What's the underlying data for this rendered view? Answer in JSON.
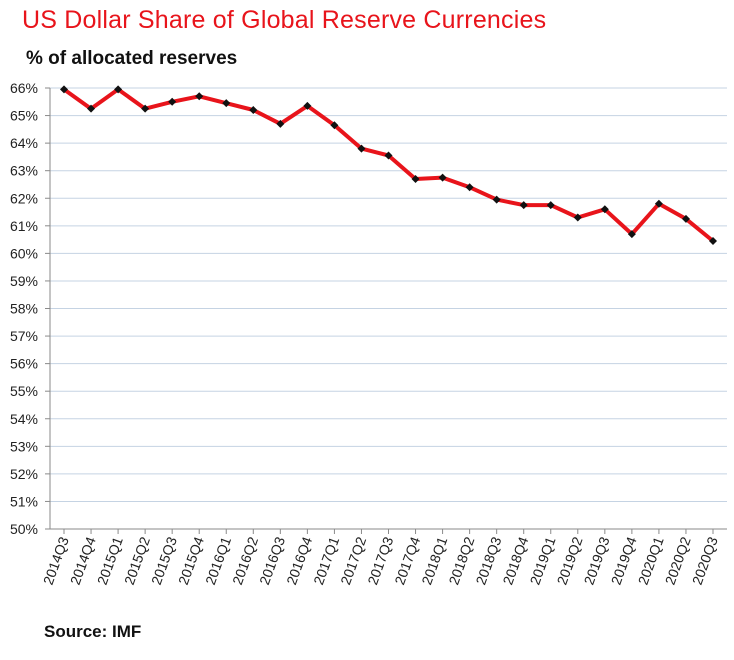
{
  "header": {
    "title": "US Dollar Share of Global Reserve Currencies",
    "subtitle": "% of allocated reserves"
  },
  "footer": {
    "source": "Source: IMF"
  },
  "colors": {
    "line": "#e8141b",
    "marker": "#111111",
    "grid": "#c5d3e3",
    "axis": "#8a8a8a"
  },
  "chart_data": {
    "type": "line",
    "title": "US Dollar Share of Global Reserve Currencies",
    "subtitle": "% of allocated reserves",
    "xlabel": "",
    "ylabel": "",
    "ylim": [
      50,
      66
    ],
    "ytick_step": 1,
    "y_unit": "%",
    "grid": true,
    "legend": "none",
    "categories": [
      "2014Q3",
      "2014Q4",
      "2015Q1",
      "2015Q2",
      "2015Q3",
      "2015Q4",
      "2016Q1",
      "2016Q2",
      "2016Q3",
      "2016Q4",
      "2017Q1",
      "2017Q2",
      "2017Q3",
      "2017Q4",
      "2018Q1",
      "2018Q2",
      "2018Q3",
      "2018Q4",
      "2019Q1",
      "2019Q2",
      "2019Q3",
      "2019Q4",
      "2020Q1",
      "2020Q2",
      "2020Q3"
    ],
    "series": [
      {
        "values": [
          65.95,
          65.25,
          65.95,
          65.25,
          65.5,
          65.7,
          65.45,
          65.2,
          64.7,
          65.35,
          64.65,
          63.8,
          63.55,
          62.7,
          62.75,
          62.4,
          61.95,
          61.75,
          61.75,
          61.3,
          61.6,
          60.7,
          61.8,
          61.25,
          60.45
        ]
      }
    ]
  }
}
